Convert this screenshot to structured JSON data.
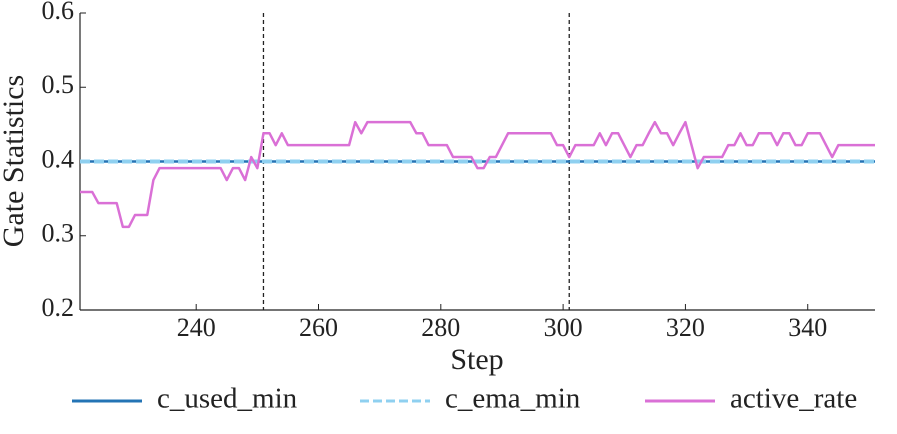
{
  "chart_data": {
    "type": "line",
    "xlabel": "Step",
    "ylabel": "Gate Statistics",
    "xlim": [
      221,
      351
    ],
    "ylim": [
      0.2,
      0.6
    ],
    "xticks": [
      240,
      260,
      280,
      300,
      320,
      340
    ],
    "yticks": [
      0.2,
      0.3,
      0.4,
      0.5,
      0.6
    ],
    "vlines": [
      251,
      301
    ],
    "legend": "bottom",
    "series": [
      {
        "name": "c_used_min",
        "color": "#2474b5",
        "dashed": false,
        "x": [
          221,
          351
        ],
        "values": [
          0.4,
          0.4
        ]
      },
      {
        "name": "c_ema_min",
        "color": "#8fd0f0",
        "dashed": true,
        "x": [
          221,
          351
        ],
        "values": [
          0.4,
          0.4
        ]
      },
      {
        "name": "active_rate",
        "color": "#da70d6",
        "dashed": false,
        "x": [
          221,
          222,
          223,
          224,
          225,
          226,
          227,
          228,
          229,
          230,
          231,
          232,
          233,
          234,
          235,
          236,
          237,
          238,
          239,
          240,
          241,
          242,
          243,
          244,
          245,
          246,
          247,
          248,
          249,
          250,
          251,
          252,
          253,
          254,
          255,
          256,
          257,
          258,
          259,
          260,
          261,
          262,
          263,
          264,
          265,
          266,
          267,
          268,
          269,
          270,
          271,
          272,
          273,
          274,
          275,
          276,
          277,
          278,
          279,
          280,
          281,
          282,
          283,
          284,
          285,
          286,
          287,
          288,
          289,
          290,
          291,
          292,
          293,
          294,
          295,
          296,
          297,
          298,
          299,
          300,
          301,
          302,
          303,
          304,
          305,
          306,
          307,
          308,
          309,
          310,
          311,
          312,
          313,
          314,
          315,
          316,
          317,
          318,
          319,
          320,
          321,
          322,
          323,
          324,
          325,
          326,
          327,
          328,
          329,
          330,
          331,
          332,
          333,
          334,
          335,
          336,
          337,
          338,
          339,
          340,
          341,
          342,
          343,
          344,
          345,
          346,
          347,
          348,
          349,
          350,
          351
        ],
        "values": [
          0.359,
          0.359,
          0.359,
          0.344,
          0.344,
          0.344,
          0.344,
          0.312,
          0.312,
          0.328,
          0.328,
          0.328,
          0.375,
          0.391,
          0.391,
          0.391,
          0.391,
          0.391,
          0.391,
          0.391,
          0.391,
          0.391,
          0.391,
          0.391,
          0.375,
          0.391,
          0.391,
          0.375,
          0.406,
          0.391,
          0.438,
          0.438,
          0.422,
          0.438,
          0.422,
          0.422,
          0.422,
          0.422,
          0.422,
          0.422,
          0.422,
          0.422,
          0.422,
          0.422,
          0.422,
          0.453,
          0.438,
          0.453,
          0.453,
          0.453,
          0.453,
          0.453,
          0.453,
          0.453,
          0.453,
          0.438,
          0.438,
          0.422,
          0.422,
          0.422,
          0.422,
          0.406,
          0.406,
          0.406,
          0.406,
          0.391,
          0.391,
          0.406,
          0.406,
          0.422,
          0.438,
          0.438,
          0.438,
          0.438,
          0.438,
          0.438,
          0.438,
          0.438,
          0.422,
          0.422,
          0.406,
          0.422,
          0.422,
          0.422,
          0.422,
          0.438,
          0.422,
          0.438,
          0.438,
          0.422,
          0.406,
          0.422,
          0.422,
          0.438,
          0.453,
          0.438,
          0.438,
          0.422,
          0.438,
          0.453,
          0.422,
          0.391,
          0.406,
          0.406,
          0.406,
          0.406,
          0.422,
          0.422,
          0.438,
          0.422,
          0.422,
          0.438,
          0.438,
          0.438,
          0.422,
          0.438,
          0.438,
          0.422,
          0.422,
          0.438,
          0.438,
          0.438,
          0.422,
          0.406,
          0.422,
          0.422,
          0.422,
          0.422,
          0.422,
          0.422,
          0.422
        ]
      }
    ]
  }
}
